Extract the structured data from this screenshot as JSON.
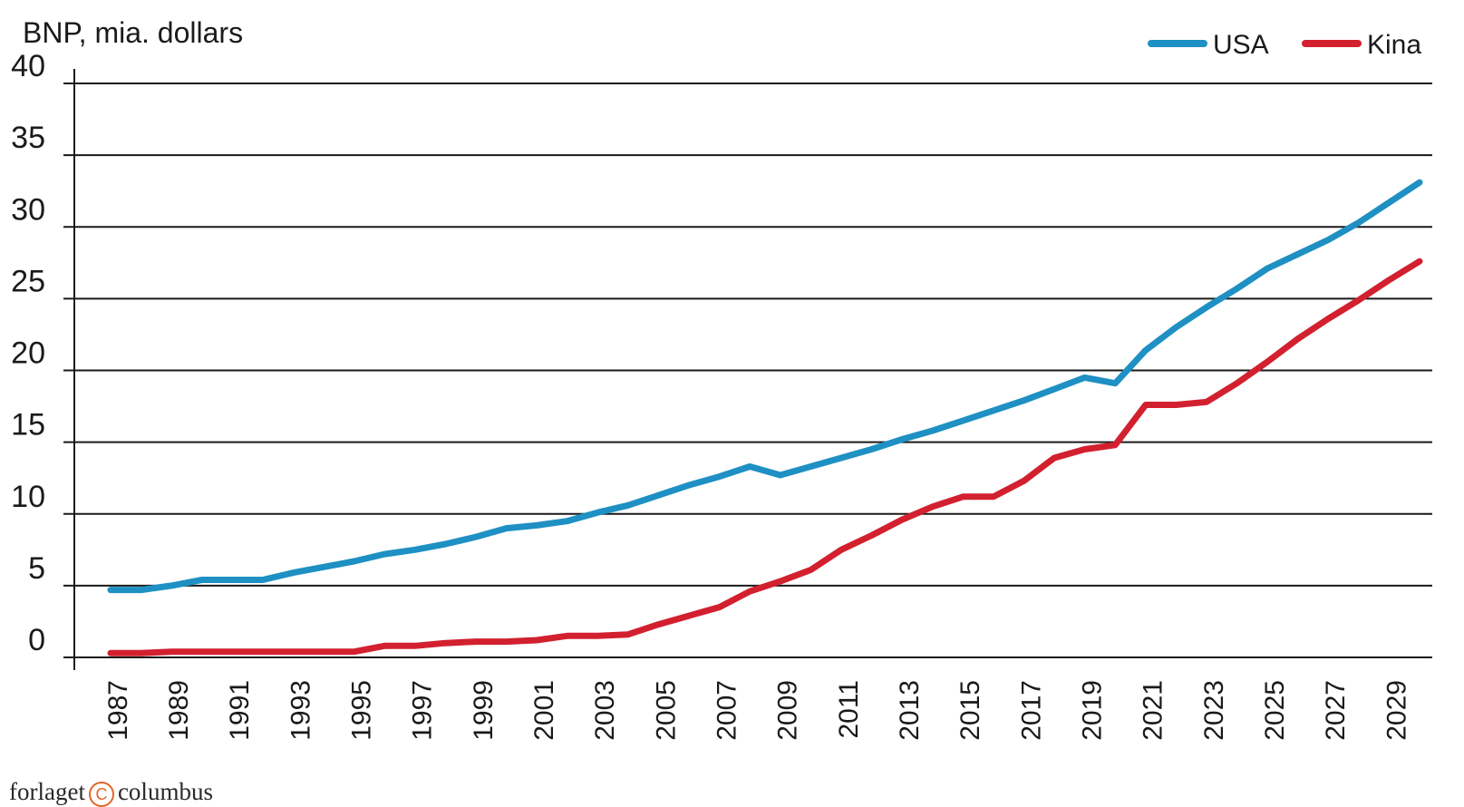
{
  "publisher": {
    "left": "forlaget",
    "mark": "C",
    "right": "columbus"
  },
  "chart_data": {
    "type": "line",
    "title": "",
    "ylabel": "BNP, mia. dollars",
    "xlabel": "",
    "ylim": [
      0,
      40
    ],
    "yticks": [
      0,
      5,
      10,
      15,
      20,
      25,
      30,
      35,
      40
    ],
    "xticks": [
      1987,
      1989,
      1991,
      1993,
      1995,
      1997,
      1999,
      2001,
      2003,
      2005,
      2007,
      2009,
      2011,
      2013,
      2015,
      2017,
      2019,
      2021,
      2023,
      2025,
      2027,
      2029
    ],
    "grid": true,
    "legend_position": "top-right",
    "x": [
      1987,
      1988,
      1989,
      1990,
      1991,
      1992,
      1993,
      1994,
      1995,
      1996,
      1997,
      1998,
      1999,
      2000,
      2001,
      2002,
      2003,
      2004,
      2005,
      2006,
      2007,
      2008,
      2009,
      2010,
      2011,
      2012,
      2013,
      2014,
      2015,
      2016,
      2017,
      2018,
      2019,
      2020,
      2021,
      2022,
      2023,
      2024,
      2025,
      2026,
      2027,
      2028,
      2029,
      2030
    ],
    "series": [
      {
        "name": "USA",
        "color": "#1e90c3",
        "values": [
          4.7,
          4.7,
          5.0,
          5.4,
          5.4,
          5.4,
          5.9,
          6.3,
          6.7,
          7.2,
          7.5,
          7.9,
          8.4,
          9.0,
          9.2,
          9.5,
          10.1,
          10.6,
          11.3,
          12.0,
          12.6,
          13.3,
          12.7,
          13.3,
          13.9,
          14.5,
          15.2,
          15.8,
          16.5,
          17.2,
          17.9,
          18.7,
          19.5,
          19.1,
          21.4,
          23.0,
          24.4,
          25.7,
          27.1,
          28.1,
          29.1,
          30.3,
          31.7,
          33.1
        ]
      },
      {
        "name": "Kina",
        "color": "#d2202f",
        "values": [
          0.3,
          0.3,
          0.4,
          0.4,
          0.4,
          0.4,
          0.4,
          0.4,
          0.4,
          0.8,
          0.8,
          1.0,
          1.1,
          1.1,
          1.2,
          1.5,
          1.5,
          1.6,
          2.3,
          2.9,
          3.5,
          4.6,
          5.3,
          6.1,
          7.5,
          8.5,
          9.6,
          10.5,
          11.2,
          11.2,
          12.3,
          13.9,
          14.5,
          14.8,
          17.6,
          17.6,
          17.8,
          19.1,
          20.6,
          22.2,
          23.6,
          24.9,
          26.3,
          27.6
        ]
      }
    ]
  }
}
